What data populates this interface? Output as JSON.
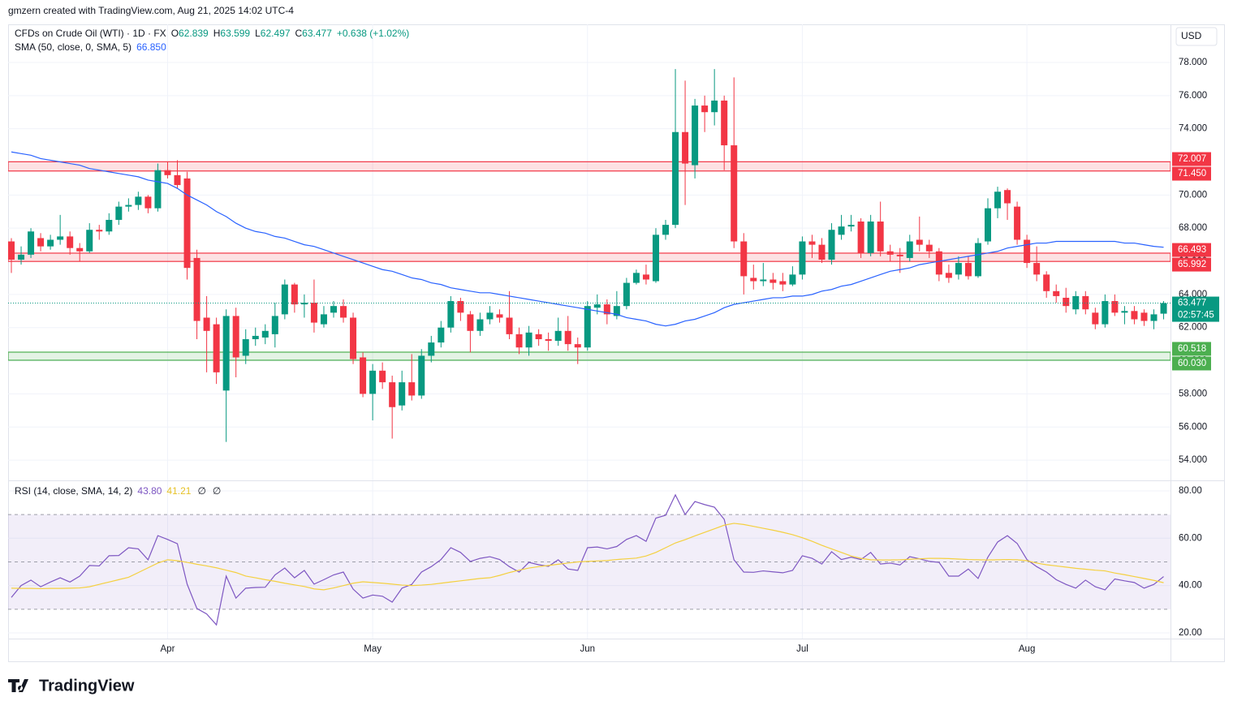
{
  "header": {
    "caption": "gmzern created with TradingView.com, Aug 21, 2025 14:02 UTC-4",
    "logo": "TradingView"
  },
  "chart_data": {
    "type": "candlestick",
    "symbol": "CFDs on Crude Oil (WTI) · 1D · FX",
    "ohlc_letters": [
      "O",
      "H",
      "L",
      "C"
    ],
    "change_label": "+0.638 (+1.02%)",
    "currency": "USD",
    "countdown": "02:57:45",
    "up_color": "#089981",
    "down_color": "#f23645",
    "categories": [
      null,
      null,
      null,
      null,
      null,
      null,
      null,
      null,
      null,
      null,
      null,
      null,
      null,
      null,
      null,
      null,
      "Apr",
      null,
      null,
      null,
      null,
      null,
      null,
      null,
      null,
      null,
      null,
      null,
      null,
      null,
      null,
      null,
      null,
      null,
      null,
      null,
      null,
      "May",
      null,
      null,
      null,
      null,
      null,
      null,
      null,
      null,
      null,
      null,
      null,
      null,
      null,
      null,
      null,
      null,
      null,
      null,
      null,
      null,
      null,
      "Jun",
      null,
      null,
      null,
      null,
      null,
      null,
      null,
      null,
      null,
      null,
      null,
      null,
      null,
      null,
      null,
      null,
      null,
      null,
      null,
      null,
      null,
      "Jul",
      null,
      null,
      null,
      null,
      null,
      null,
      null,
      null,
      null,
      null,
      null,
      null,
      null,
      null,
      null,
      null,
      null,
      null,
      null,
      null,
      null,
      null,
      "Aug",
      null,
      null,
      null,
      null,
      null,
      null,
      null,
      null,
      null,
      null,
      null,
      null,
      null,
      null
    ],
    "open": [
      67.2,
      66.1,
      66.4,
      67.4,
      66.9,
      67.3,
      67.5,
      66.8,
      66.6,
      67.9,
      67.8,
      68.5,
      69.3,
      69.4,
      69.9,
      69.2,
      71.5,
      71.2,
      71.0,
      66.2,
      62.6,
      62.2,
      58.2,
      62.7,
      60.3,
      61.3,
      61.4,
      61.6,
      62.8,
      64.6,
      63.4,
      63.5,
      62.2,
      62.9,
      63.3,
      62.6,
      60.2,
      58.0,
      59.4,
      58.7,
      57.3,
      58.7,
      57.9,
      60.3,
      61.1,
      62.0,
      63.6,
      62.8,
      61.8,
      62.5,
      62.8,
      62.6,
      61.6,
      60.8,
      61.6,
      61.3,
      61.2,
      61.8,
      61.0,
      60.8,
      63.2,
      63.4,
      62.7,
      63.3,
      64.7,
      65.2,
      64.8,
      67.6,
      68.2,
      73.8,
      71.8,
      75.4,
      75.0,
      75.7,
      73.0,
      67.2,
      65.0,
      64.8,
      64.9,
      64.8,
      64.6,
      65.2,
      67.2,
      67.0,
      66.1,
      67.6,
      68.1,
      68.4,
      66.5,
      68.4,
      66.6,
      66.4,
      66.2,
      67.3,
      67.0,
      66.6,
      65.3,
      65.2,
      65.9,
      65.1,
      67.2,
      69.2,
      70.3,
      69.3,
      67.3,
      65.9,
      65.2,
      64.2,
      63.8,
      63.1,
      63.9,
      62.9,
      62.2,
      63.6,
      62.9,
      63.0,
      62.9,
      62.4,
      62.839
    ],
    "high": [
      67.4,
      66.9,
      68.0,
      67.7,
      67.6,
      68.8,
      67.8,
      67.1,
      68.3,
      68.2,
      68.9,
      69.6,
      69.8,
      70.2,
      70.0,
      71.9,
      72.0,
      72.1,
      71.4,
      66.7,
      63.9,
      62.6,
      63.1,
      63.2,
      61.9,
      62.0,
      62.2,
      63.5,
      64.9,
      64.7,
      64.0,
      64.9,
      63.3,
      63.6,
      63.7,
      62.9,
      60.5,
      59.8,
      59.9,
      59.1,
      59.4,
      60.4,
      60.7,
      61.5,
      62.4,
      63.9,
      63.8,
      63.0,
      62.9,
      63.3,
      63.1,
      64.2,
      62.0,
      62.1,
      61.9,
      61.7,
      62.6,
      62.7,
      61.4,
      63.6,
      64.0,
      63.7,
      64.2,
      65.0,
      65.5,
      65.8,
      68.0,
      68.5,
      77.6,
      76.9,
      75.8,
      76.0,
      77.6,
      76.0,
      77.1,
      67.7,
      65.8,
      65.9,
      65.3,
      65.3,
      65.7,
      67.5,
      67.6,
      67.4,
      68.3,
      68.8,
      68.8,
      68.6,
      68.8,
      69.6,
      67.0,
      66.8,
      67.6,
      68.7,
      67.3,
      66.8,
      65.8,
      66.3,
      66.3,
      67.4,
      69.8,
      70.5,
      70.4,
      69.6,
      67.6,
      66.9,
      65.4,
      64.6,
      64.4,
      64.2,
      64.2,
      63.2,
      64.0,
      64.0,
      63.3,
      63.3,
      63.1,
      63.1,
      63.599
    ],
    "low": [
      65.3,
      65.8,
      66.2,
      66.6,
      66.7,
      67.0,
      66.4,
      66.0,
      66.5,
      67.3,
      67.6,
      68.2,
      69.0,
      69.1,
      68.9,
      69.0,
      71.0,
      70.4,
      64.9,
      61.3,
      59.3,
      58.6,
      55.1,
      59.0,
      59.8,
      60.9,
      61.0,
      60.8,
      62.5,
      62.9,
      62.6,
      61.7,
      62.0,
      62.6,
      62.3,
      59.8,
      57.8,
      56.4,
      58.3,
      55.3,
      57.0,
      57.6,
      57.7,
      59.9,
      60.8,
      61.7,
      62.4,
      60.5,
      61.5,
      62.2,
      62.3,
      61.3,
      60.4,
      60.3,
      60.9,
      60.6,
      60.9,
      60.6,
      59.8,
      60.6,
      62.8,
      62.2,
      62.5,
      63.1,
      64.6,
      64.6,
      64.7,
      67.3,
      68.0,
      69.4,
      71.0,
      73.8,
      74.2,
      71.5,
      66.8,
      64.0,
      64.3,
      64.5,
      64.3,
      64.2,
      64.5,
      64.9,
      66.2,
      65.9,
      65.8,
      67.3,
      67.8,
      66.2,
      66.3,
      66.3,
      66.0,
      65.3,
      66.0,
      66.6,
      66.2,
      64.8,
      64.7,
      64.9,
      64.9,
      65.0,
      67.0,
      68.6,
      68.5,
      67.0,
      65.6,
      64.8,
      63.8,
      63.5,
      62.9,
      62.8,
      62.8,
      61.9,
      62.0,
      62.7,
      62.2,
      62.2,
      62.1,
      61.9,
      62.497
    ],
    "close": [
      66.1,
      66.4,
      67.8,
      66.9,
      67.3,
      67.5,
      66.8,
      66.6,
      67.9,
      67.8,
      68.5,
      69.3,
      69.4,
      69.9,
      69.2,
      71.5,
      71.2,
      70.6,
      65.6,
      62.4,
      61.8,
      59.3,
      62.7,
      60.2,
      61.3,
      61.5,
      61.8,
      62.7,
      64.6,
      63.4,
      63.5,
      62.3,
      62.8,
      63.3,
      62.6,
      60.1,
      58.0,
      59.4,
      58.7,
      57.2,
      58.7,
      57.9,
      60.3,
      61.1,
      62.0,
      63.6,
      62.9,
      61.8,
      62.5,
      62.9,
      62.6,
      61.6,
      60.8,
      61.7,
      61.3,
      61.2,
      61.8,
      61.0,
      60.8,
      63.3,
      63.4,
      62.8,
      63.3,
      64.7,
      65.3,
      64.9,
      67.6,
      68.2,
      73.8,
      71.9,
      75.4,
      75.0,
      75.7,
      73.0,
      67.2,
      65.1,
      64.8,
      64.9,
      64.7,
      64.6,
      65.2,
      67.2,
      67.0,
      66.1,
      67.9,
      68.1,
      68.2,
      66.5,
      68.4,
      66.6,
      66.4,
      66.3,
      67.2,
      67.0,
      66.6,
      65.2,
      65.0,
      65.9,
      65.1,
      67.1,
      69.2,
      70.2,
      69.5,
      67.3,
      65.9,
      65.2,
      64.2,
      63.9,
      63.3,
      63.9,
      63.1,
      62.2,
      63.6,
      62.9,
      63.0,
      62.5,
      62.4,
      62.8,
      63.477
    ],
    "sma": {
      "name": "SMA (50, close, 0, SMA, 5)",
      "color": "#2962ff",
      "last_label": "66.850",
      "values": [
        72.6,
        72.5,
        72.4,
        72.2,
        72.1,
        72.0,
        71.9,
        71.8,
        71.6,
        71.5,
        71.4,
        71.3,
        71.2,
        71.1,
        70.9,
        70.8,
        70.7,
        70.4,
        70.0,
        69.7,
        69.4,
        69.0,
        68.7,
        68.3,
        68.0,
        67.8,
        67.7,
        67.5,
        67.4,
        67.2,
        67.0,
        66.9,
        66.7,
        66.5,
        66.3,
        66.1,
        65.9,
        65.7,
        65.5,
        65.4,
        65.2,
        65.0,
        64.9,
        64.7,
        64.6,
        64.4,
        64.3,
        64.2,
        64.1,
        64.1,
        64.0,
        63.9,
        63.8,
        63.7,
        63.6,
        63.5,
        63.4,
        63.3,
        63.2,
        63.1,
        63.0,
        62.9,
        62.8,
        62.6,
        62.5,
        62.4,
        62.2,
        62.1,
        62.2,
        62.4,
        62.5,
        62.7,
        62.9,
        63.2,
        63.4,
        63.5,
        63.6,
        63.7,
        63.8,
        63.8,
        63.9,
        63.9,
        64.0,
        64.2,
        64.3,
        64.5,
        64.6,
        64.8,
        65.0,
        65.2,
        65.4,
        65.5,
        65.6,
        65.8,
        65.9,
        66.0,
        66.1,
        66.2,
        66.3,
        66.4,
        66.5,
        66.6,
        66.8,
        66.9,
        67.0,
        67.1,
        67.1,
        67.2,
        67.2,
        67.2,
        67.2,
        67.2,
        67.2,
        67.2,
        67.1,
        67.1,
        67.0,
        66.9,
        66.85
      ]
    },
    "zones": [
      {
        "top": 72.007,
        "bottom": 71.45,
        "labels": [
          "72.007",
          "71.450"
        ],
        "color": "#f23645"
      },
      {
        "top": 66.493,
        "bottom": 65.992,
        "labels": [
          "66.493",
          "65.992"
        ],
        "color": "#f23645"
      },
      {
        "top": 60.518,
        "bottom": 60.03,
        "labels": [
          "60.518",
          "60.030"
        ],
        "color": "#4caf50"
      }
    ],
    "grid": true,
    "ylim": [
      52.78,
      80.3
    ],
    "yticks": [
      {
        "value": 54,
        "label": "54.000"
      },
      {
        "value": 56,
        "label": "56.000"
      },
      {
        "value": 58,
        "label": "58.000"
      },
      {
        "value": 60,
        "label": "60.000"
      },
      {
        "value": 62,
        "label": "62.000"
      },
      {
        "value": 64,
        "label": "64.000"
      },
      {
        "value": 66,
        "label": "66.000"
      },
      {
        "value": 68,
        "label": "68.000"
      },
      {
        "value": 70,
        "label": "70.000"
      },
      {
        "value": 72,
        "label": "72.000"
      },
      {
        "value": 74,
        "label": "74.000"
      },
      {
        "value": 76,
        "label": "76.000"
      },
      {
        "value": 78,
        "label": "78.000"
      }
    ],
    "rsi": {
      "type": "line",
      "name": "RSI (14, close, SMA, 14, 2)",
      "empty_marks": [
        "∅",
        "∅"
      ],
      "ylim": [
        17.6,
        84.1
      ],
      "yticks": [
        {
          "value": 20,
          "label": "20.00"
        },
        {
          "value": 40,
          "label": "40.00"
        },
        {
          "value": 60,
          "label": "60.00"
        },
        {
          "value": 80,
          "label": "80.00"
        }
      ],
      "levels": [
        30,
        50,
        70
      ],
      "band": [
        30,
        70
      ],
      "band_color": "#7e57c2",
      "series": [
        {
          "name": "RSI",
          "color": "#7e57c2",
          "last_label": "43.80",
          "values": [
            35,
            40,
            42.3,
            39.5,
            41.5,
            43.3,
            41.5,
            44,
            48.5,
            48.3,
            52.6,
            52.7,
            56,
            55.5,
            50.9,
            61.1,
            59.5,
            57.7,
            40.6,
            30.3,
            28,
            23.4,
            44,
            34.7,
            38.9,
            39.2,
            39.3,
            44.5,
            47.4,
            43.3,
            46.4,
            40.6,
            42.5,
            44.5,
            45.7,
            38.5,
            34.7,
            36,
            35.5,
            33,
            38.9,
            40.5,
            45.7,
            48,
            51,
            56,
            54,
            50.2,
            51.5,
            52.2,
            51,
            48,
            45.7,
            49.8,
            48.8,
            48.1,
            50.9,
            47,
            46.4,
            56,
            56.3,
            55.5,
            56.5,
            59.5,
            61.1,
            58.7,
            68.5,
            69.7,
            78.3,
            70,
            75.5,
            74.2,
            73.1,
            68,
            50.9,
            45.7,
            45.6,
            46.2,
            45.8,
            45.4,
            46.4,
            52.6,
            51.5,
            49.1,
            54.3,
            51,
            52,
            51,
            54,
            49.1,
            49.5,
            48.7,
            52.2,
            51.3,
            50.2,
            49.8,
            44,
            44,
            47,
            43,
            52,
            58.4,
            61.1,
            57.8,
            51,
            48,
            45.7,
            42.5,
            40.5,
            38.9,
            42.3,
            39.5,
            38.2,
            42.8,
            42,
            41.3,
            38.9,
            40.5,
            43.8
          ]
        },
        {
          "name": "RSI-based MA",
          "color": "#f4d03f",
          "last_label": "41.21",
          "values": [
            38.9,
            38.8,
            38.8,
            38.7,
            38.8,
            38.8,
            38.9,
            39.0,
            39.5,
            40.5,
            41.5,
            42.5,
            43.5,
            45.5,
            47.5,
            49.5,
            50.9,
            50.5,
            49.8,
            49,
            48.3,
            47.5,
            46.5,
            45.5,
            44,
            43.3,
            42.5,
            41.8,
            41,
            40.3,
            39.6,
            38.6,
            38.2,
            39,
            40,
            41,
            41.6,
            41.3,
            41,
            40.6,
            40.2,
            40,
            40.2,
            40.5,
            41,
            41.5,
            42,
            42.5,
            43,
            43.3,
            44.3,
            45.5,
            46.5,
            47.4,
            48,
            48.5,
            49,
            49.5,
            50,
            50.2,
            50.4,
            50.6,
            51,
            51.3,
            51.6,
            52.5,
            54,
            56,
            58,
            59.4,
            61,
            62.5,
            64,
            65.5,
            66.3,
            65.8,
            65,
            64.2,
            63.4,
            62.5,
            61.5,
            60.2,
            58.7,
            57,
            55.5,
            54,
            52.5,
            51.5,
            50.9,
            50.8,
            50.8,
            50.9,
            51.1,
            51.3,
            51.5,
            51.5,
            51.4,
            51.2,
            51,
            50.9,
            50.8,
            50.9,
            51,
            50.9,
            50.5,
            49.5,
            48.8,
            48.3,
            47.8,
            47.3,
            46.9,
            46.5,
            46.2,
            45.3,
            44.6,
            43.8,
            43,
            42.2,
            41.21
          ]
        }
      ]
    }
  }
}
